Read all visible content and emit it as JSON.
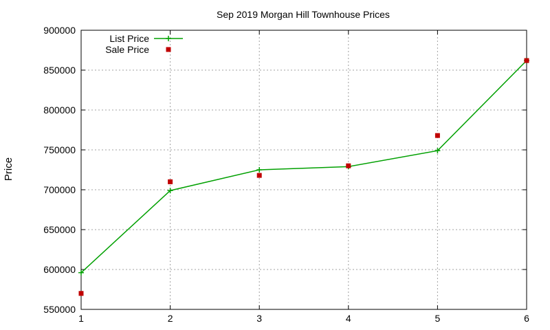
{
  "chart_data": {
    "type": "line",
    "title": "Sep 2019 Morgan Hill Townhouse Prices",
    "xlabel": "",
    "ylabel": "Price",
    "xlim": [
      1,
      6
    ],
    "ylim": [
      550000,
      900000
    ],
    "xticks": [
      1,
      2,
      3,
      4,
      5,
      6
    ],
    "yticks": [
      550000,
      600000,
      650000,
      700000,
      750000,
      800000,
      850000,
      900000
    ],
    "grid": true,
    "legend_position": "top-left",
    "series": [
      {
        "name": "List Price",
        "style": "line+cross",
        "color": "#00a000",
        "x": [
          1,
          2,
          3,
          4,
          5,
          6
        ],
        "y": [
          596000,
          699000,
          725000,
          729000,
          749000,
          862000
        ]
      },
      {
        "name": "Sale Price",
        "style": "square-points",
        "color": "#c00000",
        "x": [
          1,
          2,
          3,
          4,
          5,
          6
        ],
        "y": [
          570000,
          710000,
          718000,
          730000,
          768000,
          862000
        ]
      }
    ]
  }
}
